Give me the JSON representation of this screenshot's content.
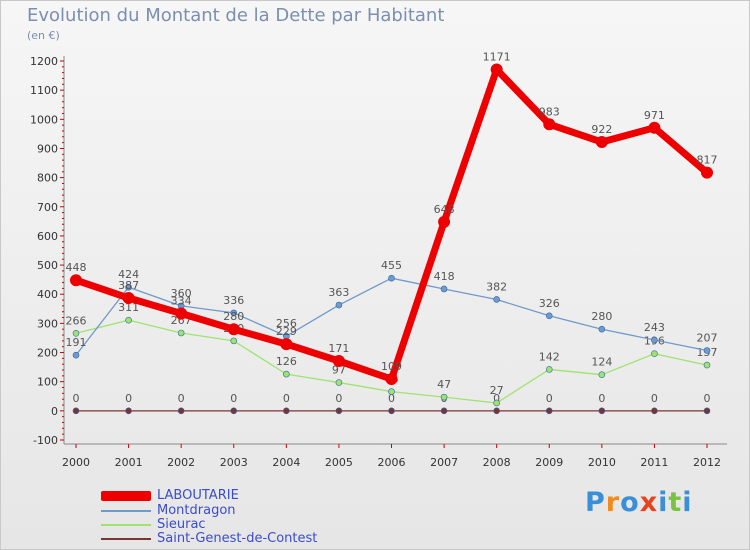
{
  "title": "Evolution du Montant de la Dette par Habitant",
  "unit": "(en €)",
  "logo": "Proxiti",
  "colors": {
    "LABOUTARIE": "#ee0000",
    "Montdragon": "#6f9ac9",
    "Sieurac": "#9ee36f",
    "Saint-Genest-de-Contest": "#7a3434"
  },
  "chart_data": {
    "type": "line",
    "title": "Evolution du Montant de la Dette par Habitant",
    "ylabel": "(en €)",
    "xlabel": "",
    "ylim": [
      -100,
      1200
    ],
    "yticks": [
      -100,
      0,
      100,
      200,
      300,
      400,
      500,
      600,
      700,
      800,
      900,
      1000,
      1100,
      1200
    ],
    "grid": false,
    "legend_position": "bottom-left",
    "x": [
      "2000",
      "2001",
      "2002",
      "2003",
      "2004",
      "2005",
      "2006",
      "2007",
      "2008",
      "2009",
      "2010",
      "2011",
      "2012"
    ],
    "series": [
      {
        "name": "LABOUTARIE",
        "values": [
          448,
          387,
          334,
          280,
          229,
          171,
          109,
          648,
          1171,
          983,
          922,
          971,
          817
        ]
      },
      {
        "name": "Montdragon",
        "values": [
          191,
          424,
          360,
          336,
          256,
          363,
          455,
          418,
          382,
          326,
          280,
          243,
          207
        ]
      },
      {
        "name": "Sieurac",
        "values": [
          266,
          311,
          267,
          240,
          126,
          97,
          66,
          47,
          27,
          142,
          124,
          196,
          157
        ]
      },
      {
        "name": "Saint-Genest-de-Contest",
        "values": [
          0,
          0,
          0,
          0,
          0,
          0,
          0,
          0,
          0,
          0,
          0,
          0,
          0
        ]
      }
    ]
  }
}
